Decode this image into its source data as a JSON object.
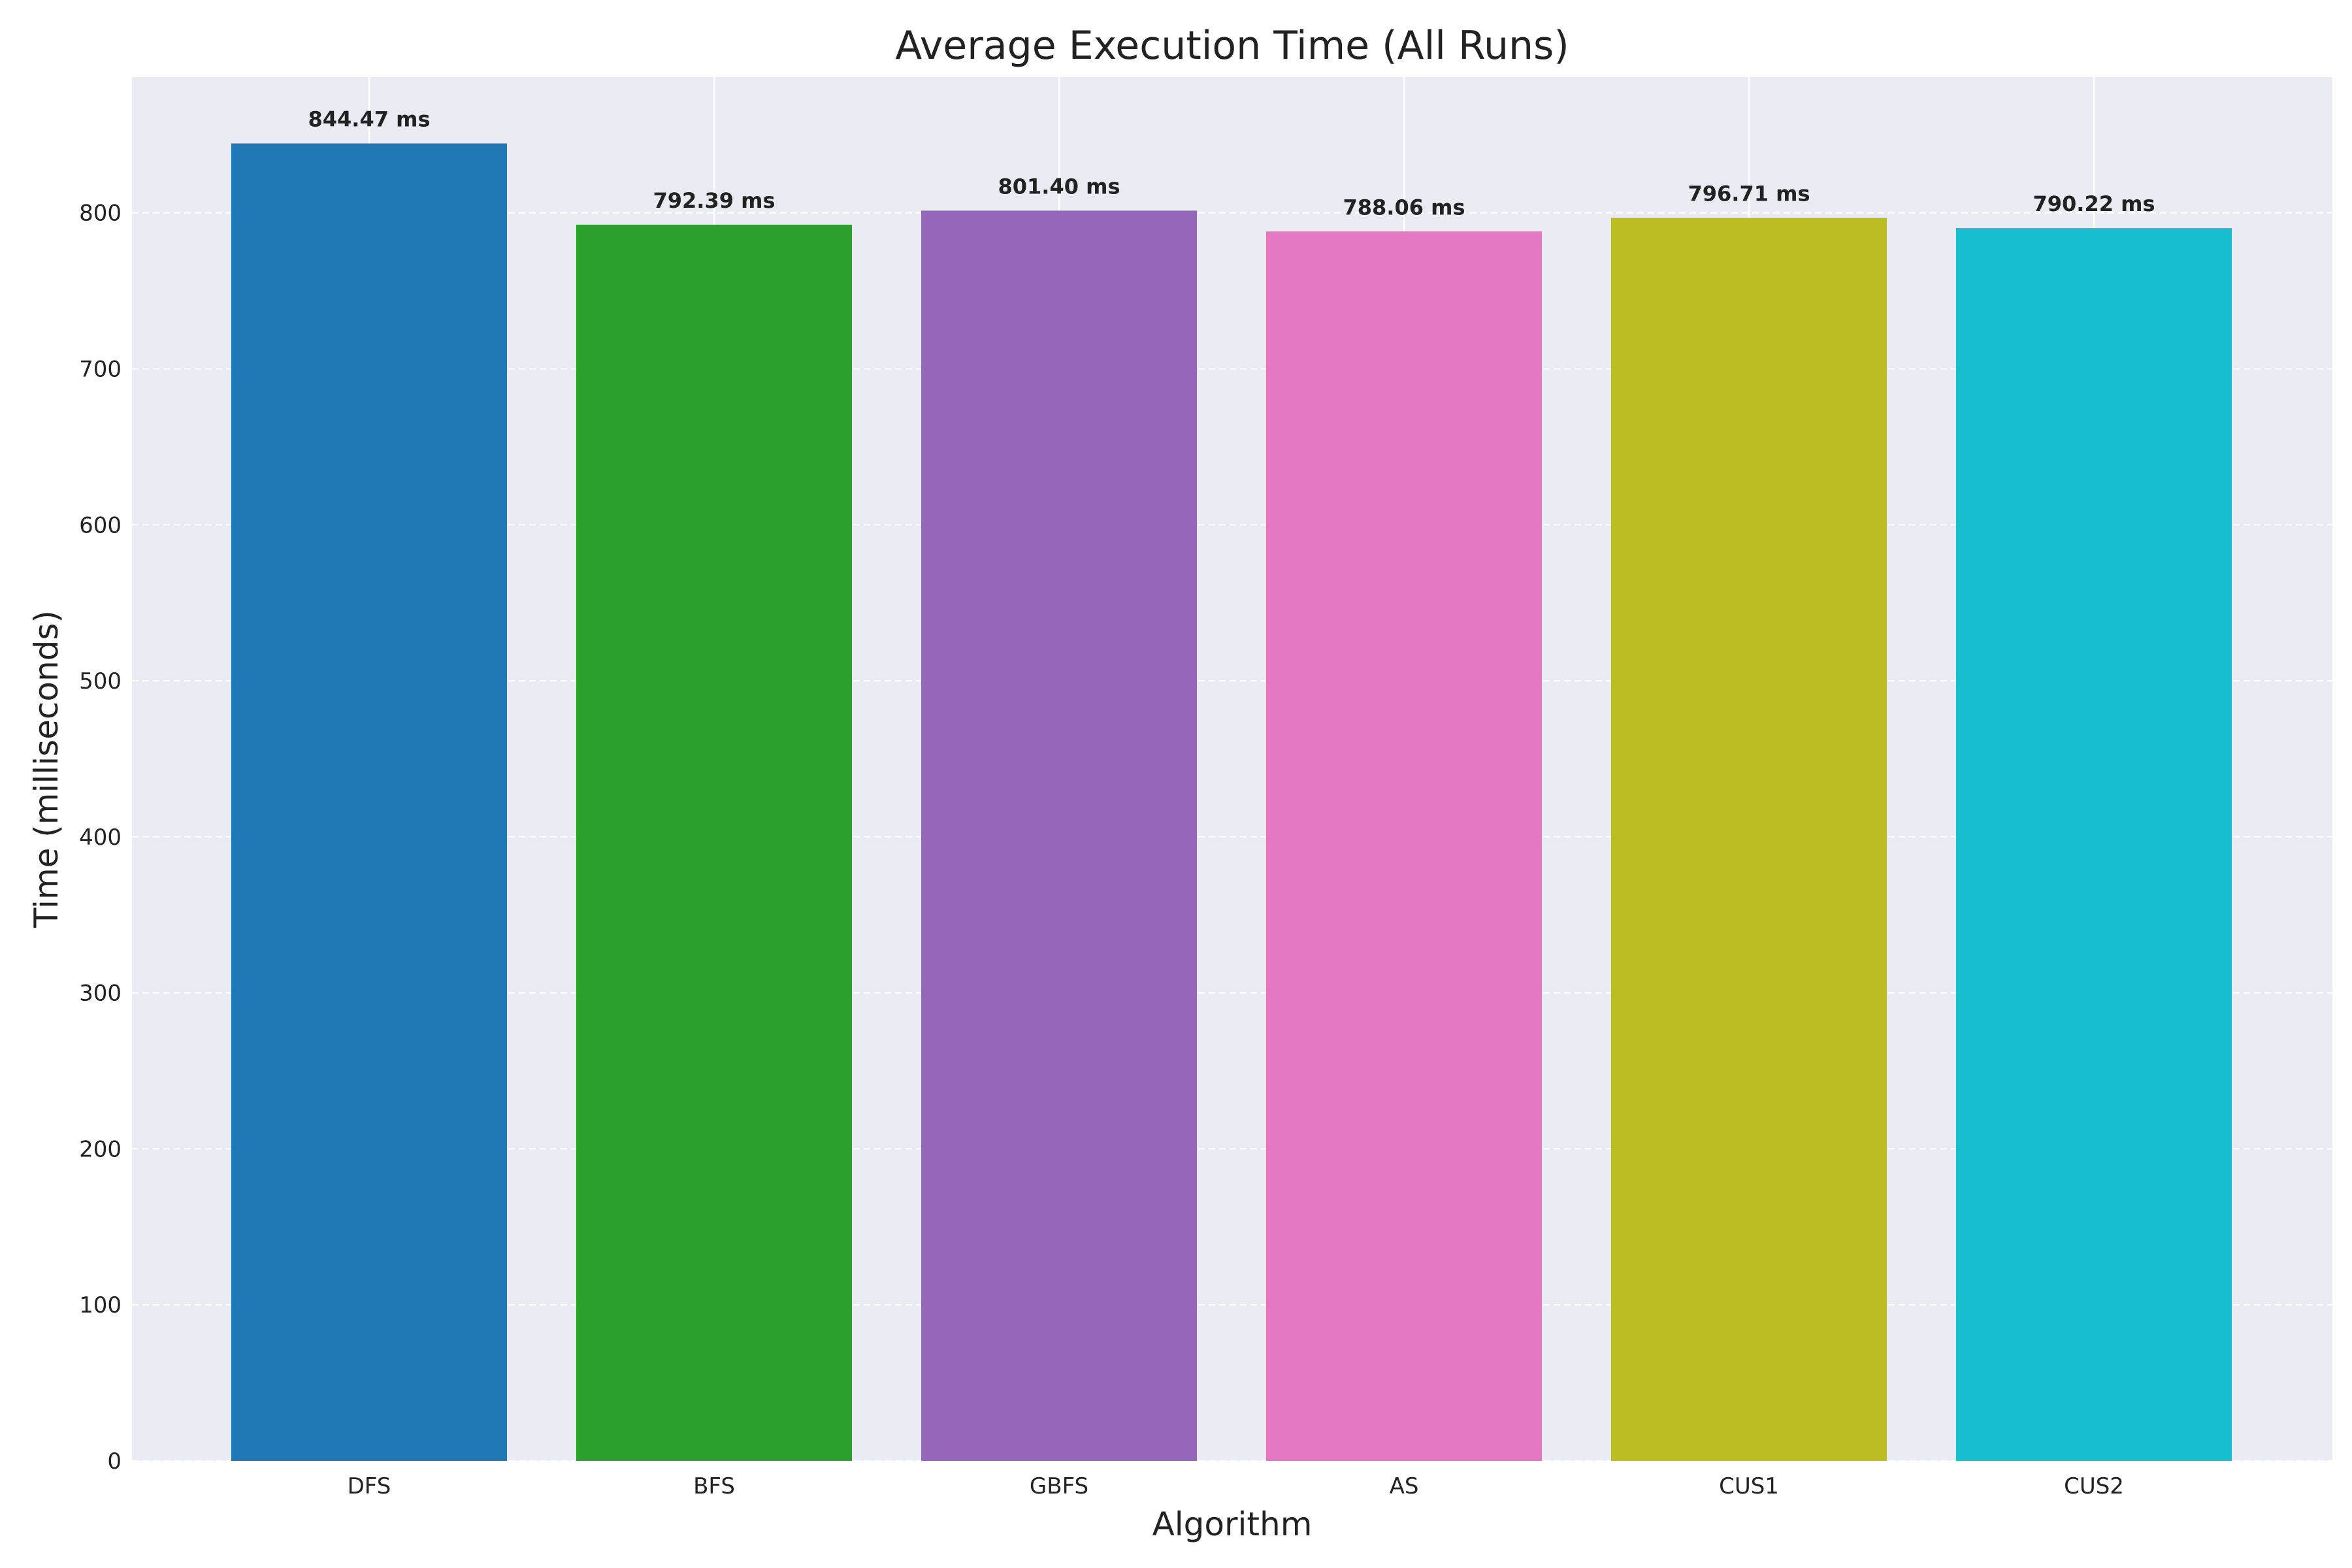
{
  "chart_data": {
    "type": "bar",
    "title": "Average Execution Time (All Runs)",
    "xlabel": "Algorithm",
    "ylabel": "Time (milliseconds)",
    "categories": [
      "DFS",
      "BFS",
      "GBFS",
      "AS",
      "CUS1",
      "CUS2"
    ],
    "values": [
      844.47,
      792.39,
      801.4,
      788.06,
      796.71,
      790.22
    ],
    "value_labels": [
      "844.47 ms",
      "792.39 ms",
      "801.40 ms",
      "788.06 ms",
      "796.71 ms",
      "790.22 ms"
    ],
    "colors": [
      "#1f77b4",
      "#2ca02c",
      "#9467bd",
      "#e377c2",
      "#bcbd22",
      "#17becf"
    ],
    "ylim": [
      0,
      887
    ],
    "yticks": [
      0,
      100,
      200,
      300,
      400,
      500,
      600,
      700,
      800
    ],
    "grid": true,
    "background": "#eaeaf2"
  }
}
